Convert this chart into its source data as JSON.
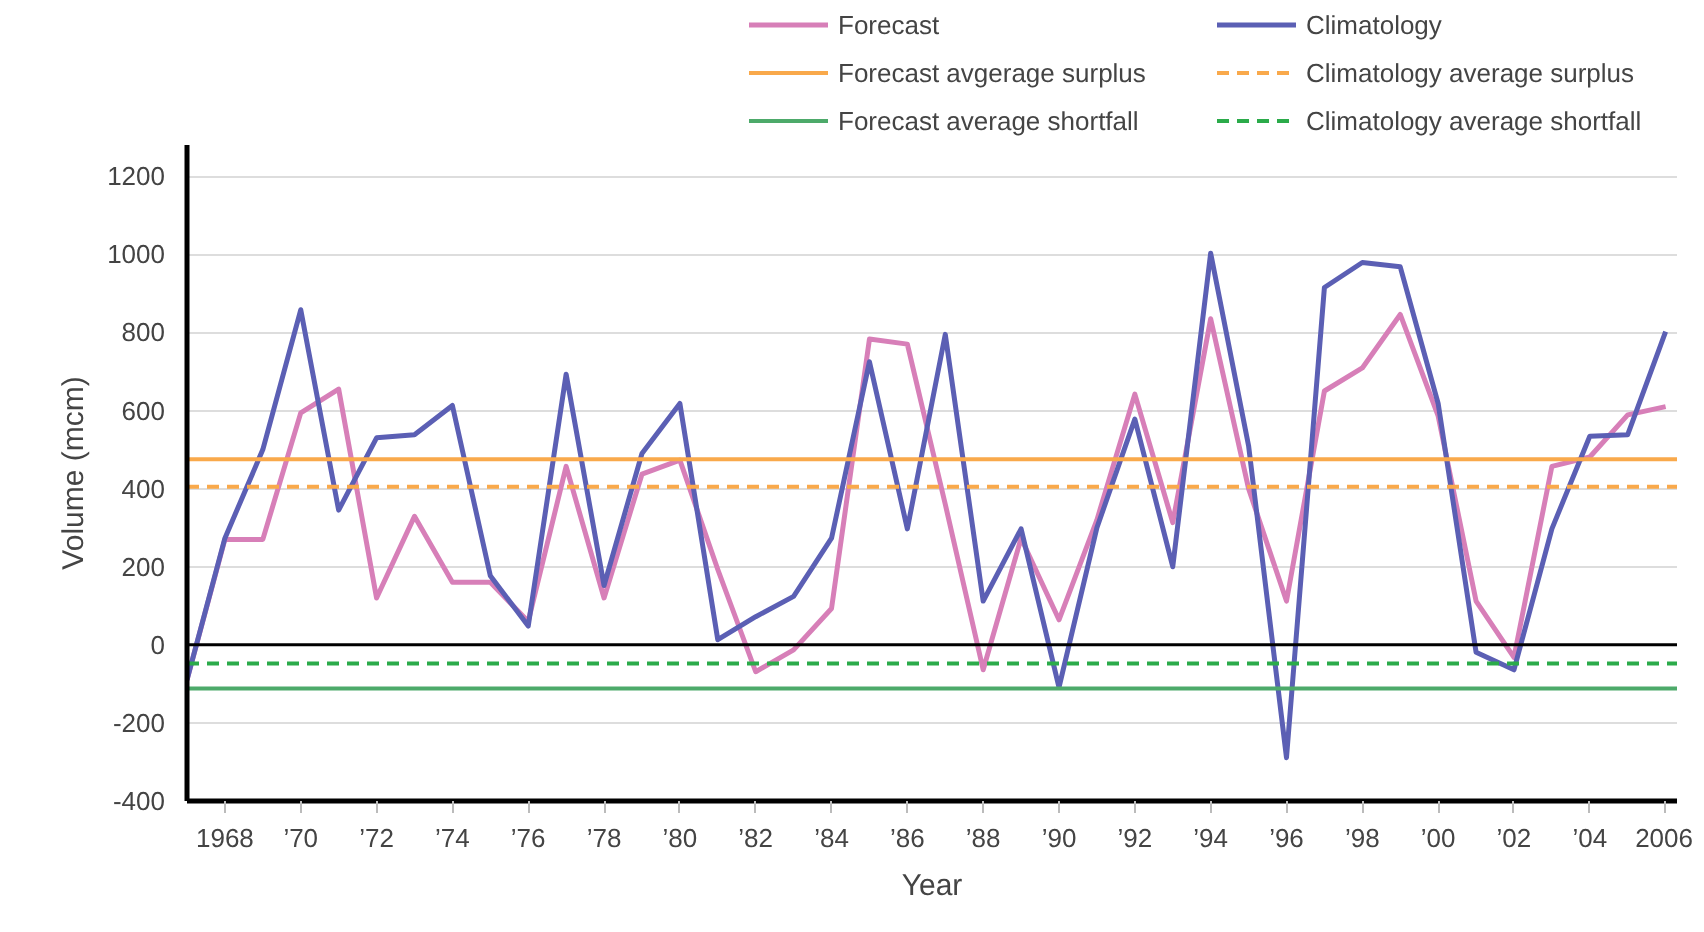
{
  "chart_data": {
    "type": "line",
    "xlabel": "Year",
    "ylabel": "Volume (mcm)",
    "x": [
      1967,
      1968,
      1969,
      1970,
      1971,
      1972,
      1973,
      1974,
      1975,
      1976,
      1977,
      1978,
      1979,
      1980,
      1981,
      1982,
      1983,
      1984,
      1985,
      1986,
      1987,
      1988,
      1989,
      1990,
      1991,
      1992,
      1993,
      1994,
      1995,
      1996,
      1997,
      1998,
      1999,
      2000,
      2001,
      2002,
      2003,
      2004,
      2005,
      2006
    ],
    "series": [
      {
        "name": "Forecast",
        "color": "#d77fb8",
        "values": [
          -90,
          270,
          270,
          594,
          655,
          120,
          329,
          160,
          160,
          60,
          457,
          120,
          437,
          473,
          193,
          -69,
          -13,
          93,
          783,
          770,
          360,
          -64,
          273,
          64,
          320,
          642,
          313,
          835,
          400,
          112,
          650,
          709,
          846,
          586,
          112,
          -32,
          457,
          481,
          589,
          610
        ]
      },
      {
        "name": "Climatology",
        "color": "#5b5fb4",
        "values": [
          -90,
          273,
          500,
          858,
          345,
          530,
          538,
          613,
          177,
          48,
          693,
          152,
          490,
          618,
          13,
          72,
          124,
          273,
          725,
          297,
          795,
          112,
          297,
          -109,
          300,
          578,
          200,
          1003,
          510,
          -289,
          915,
          979,
          968,
          618,
          -19,
          -64,
          297,
          534,
          538,
          802
        ]
      }
    ],
    "ref_lines": [
      {
        "axis": "y",
        "value": 475,
        "label": "Forecast avgerage surplus",
        "color": "#f9a94b",
        "line_style": "solid"
      },
      {
        "axis": "y",
        "value": 405,
        "label": "Climatology average surplus",
        "color": "#f9a94b",
        "line_style": "dashed"
      },
      {
        "axis": "y",
        "value": -112,
        "label": "Forecast average shortfall",
        "color": "#4daa6a",
        "line_style": "solid"
      },
      {
        "axis": "y",
        "value": -48,
        "label": "Climatology average shortfall",
        "color": "#2bab4a",
        "line_style": "dashed"
      }
    ],
    "xlim": [
      1967,
      2006.3
    ],
    "ylim": [
      -400,
      1280
    ],
    "xticks": [
      {
        "value": 1968,
        "label": "1968"
      },
      {
        "value": 1970,
        "label": "’70"
      },
      {
        "value": 1972,
        "label": "’72"
      },
      {
        "value": 1974,
        "label": "’74"
      },
      {
        "value": 1976,
        "label": "’76"
      },
      {
        "value": 1978,
        "label": "’78"
      },
      {
        "value": 1980,
        "label": "’80"
      },
      {
        "value": 1982,
        "label": "’82"
      },
      {
        "value": 1984,
        "label": "’84"
      },
      {
        "value": 1986,
        "label": "’86"
      },
      {
        "value": 1988,
        "label": "’88"
      },
      {
        "value": 1990,
        "label": "’90"
      },
      {
        "value": 1992,
        "label": "’92"
      },
      {
        "value": 1994,
        "label": "’94"
      },
      {
        "value": 1996,
        "label": "’96"
      },
      {
        "value": 1998,
        "label": "’98"
      },
      {
        "value": 2000,
        "label": "’00"
      },
      {
        "value": 2002,
        "label": "’02"
      },
      {
        "value": 2004,
        "label": "’04"
      },
      {
        "value": 2006,
        "label": "2006"
      }
    ],
    "yticks": [
      -400,
      -200,
      0,
      200,
      400,
      600,
      800,
      1000,
      1200
    ],
    "grid": "y",
    "legend": "top",
    "marker": "none",
    "line_style": "solid"
  }
}
